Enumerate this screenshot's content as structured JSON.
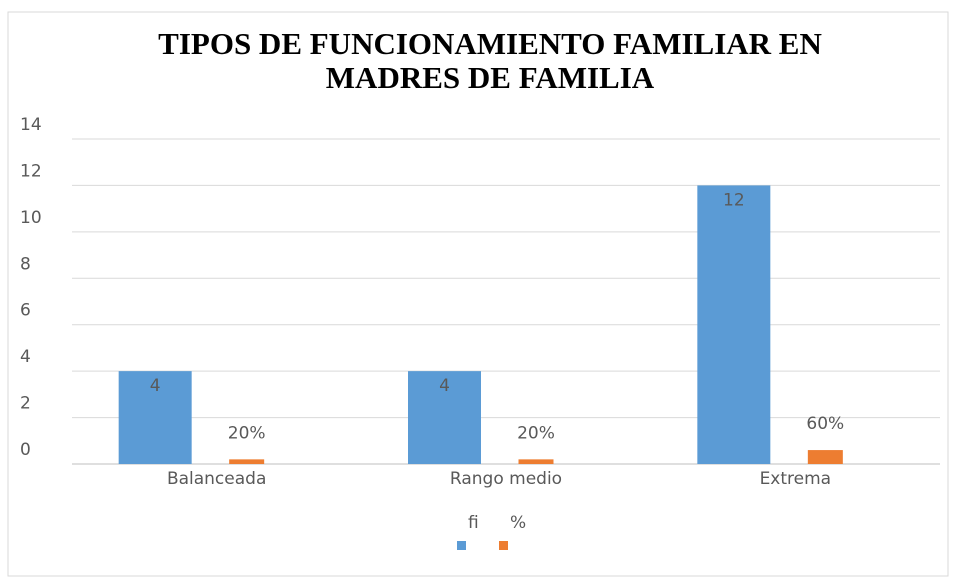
{
  "chart_data": {
    "type": "bar",
    "title": [
      "TIPOS DE FUNCIONAMIENTO FAMILIAR EN",
      "MADRES DE FAMILIA"
    ],
    "categories": [
      "Balanceada",
      "Rango medio",
      "Extrema"
    ],
    "series": [
      {
        "name": "fi",
        "color": "#5b9bd5",
        "values": [
          4,
          4,
          12
        ]
      },
      {
        "name": "%",
        "color": "#ed7d31",
        "values": [
          0.2,
          0.2,
          0.6
        ],
        "value_labels": [
          "20%",
          "20%",
          "60%"
        ]
      }
    ],
    "ylim": [
      0,
      14
    ],
    "yticks": [
      0,
      2,
      4,
      6,
      8,
      10,
      12,
      14
    ],
    "grid": true,
    "legend": "bottom"
  }
}
